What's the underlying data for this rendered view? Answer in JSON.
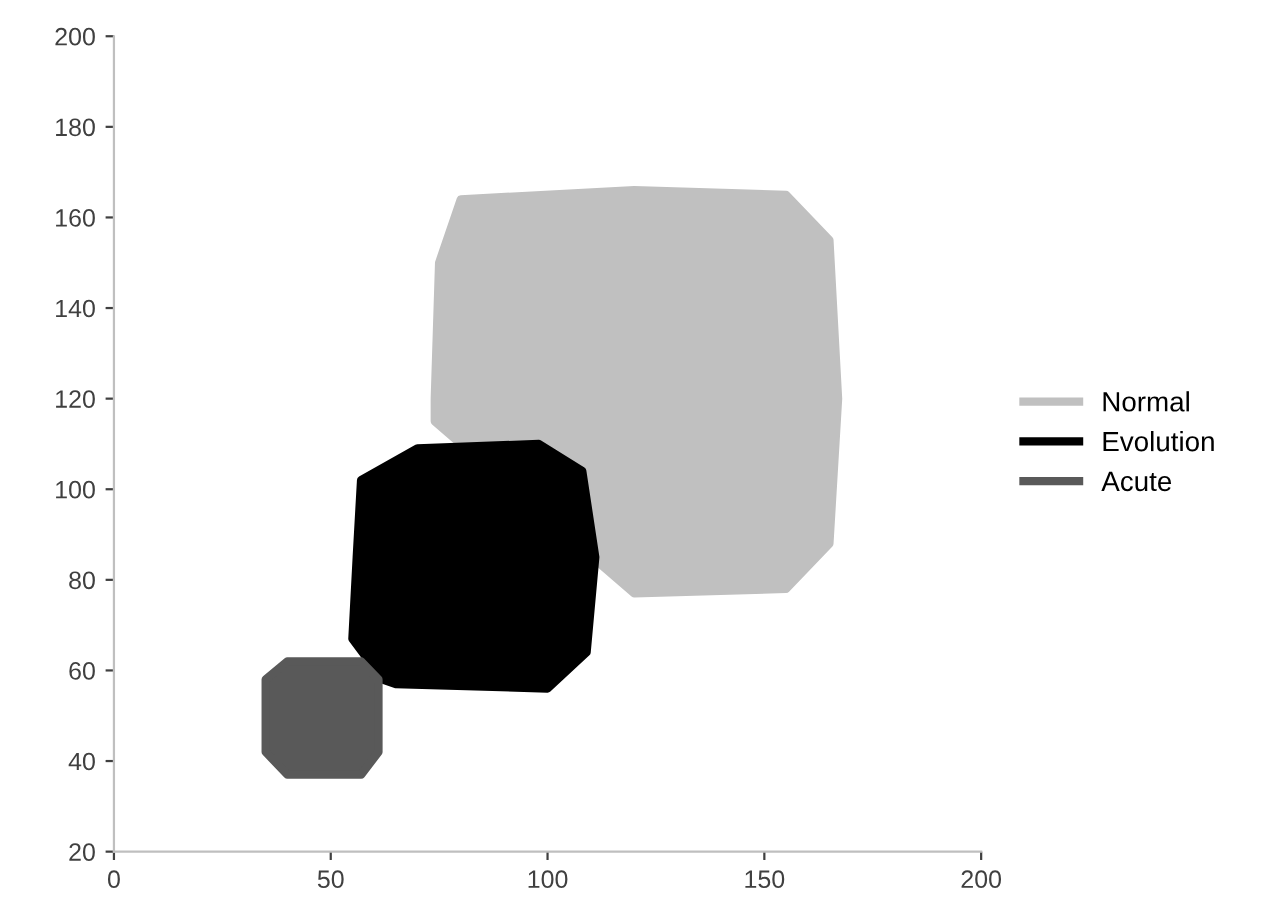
{
  "chart_data": {
    "type": "area",
    "xlim": [
      0,
      200
    ],
    "xticks": [
      0,
      50,
      100,
      150,
      200
    ],
    "ylim": [
      20,
      200
    ],
    "yticks": [
      20,
      40,
      60,
      80,
      100,
      120,
      140,
      160,
      180,
      200
    ],
    "grid": false,
    "legend": "right",
    "line_style": "solid",
    "series": [
      {
        "name": "Normal",
        "color": "#c0c0c0",
        "x": [
          120,
          155,
          165,
          167,
          165,
          155,
          120,
          80,
          75,
          74,
          74,
          120
        ],
        "values": [
          77,
          78,
          88,
          120,
          155,
          165,
          166,
          164,
          150,
          120,
          115,
          77
        ]
      },
      {
        "name": "Evolution",
        "color": "#000000",
        "x": [
          65,
          100,
          109,
          111,
          108,
          98,
          70,
          57,
          56,
          55,
          62,
          65
        ],
        "values": [
          57,
          56,
          64,
          85,
          104,
          110,
          109,
          102,
          85,
          67,
          58,
          57
        ]
      },
      {
        "name": "Acute",
        "color": "#595959",
        "x": [
          40,
          57,
          61,
          61,
          57,
          40,
          35,
          35,
          40
        ],
        "values": [
          37,
          37,
          42,
          58,
          62,
          62,
          58,
          42,
          37
        ]
      }
    ]
  }
}
